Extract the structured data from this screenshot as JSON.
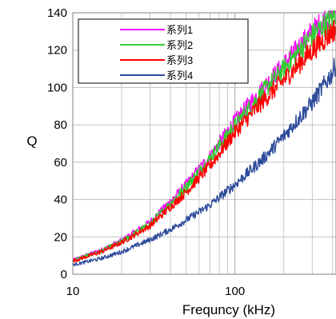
{
  "chart_data": {
    "type": "line",
    "x_scale": "log",
    "xlim": [
      10,
      420
    ],
    "ylim": [
      0,
      140
    ],
    "x_ticks": [
      "10",
      "100"
    ],
    "y_ticks": [
      "0",
      "20",
      "40",
      "60",
      "80",
      "100",
      "120",
      "140"
    ],
    "xlabel": "Frequncy (kHz)",
    "ylabel": "Q",
    "grid": true,
    "legend_position": "top-left",
    "x": [
      10,
      15,
      20,
      30,
      40,
      50,
      70,
      100,
      150,
      200,
      300,
      400,
      420
    ],
    "series": [
      {
        "name": "系列1",
        "color": "#ff00ff",
        "values": [
          7.5,
          13,
          18,
          28,
          39,
          48,
          63,
          82,
          100,
          112,
          130,
          140,
          143
        ]
      },
      {
        "name": "系列2",
        "color": "#33cc33",
        "values": [
          7.3,
          12.5,
          17.5,
          27,
          38,
          47,
          62,
          80,
          98,
          110,
          128,
          137,
          140
        ]
      },
      {
        "name": "系列3",
        "color": "#ff0000",
        "values": [
          7,
          12,
          17,
          26,
          36,
          44,
          58,
          76,
          93,
          104,
          120,
          130,
          132
        ]
      },
      {
        "name": "系列4",
        "color": "#2e4b9b",
        "values": [
          5,
          8.5,
          12,
          18.5,
          24,
          29,
          37,
          48,
          62,
          74,
          92,
          108,
          113
        ]
      }
    ]
  }
}
